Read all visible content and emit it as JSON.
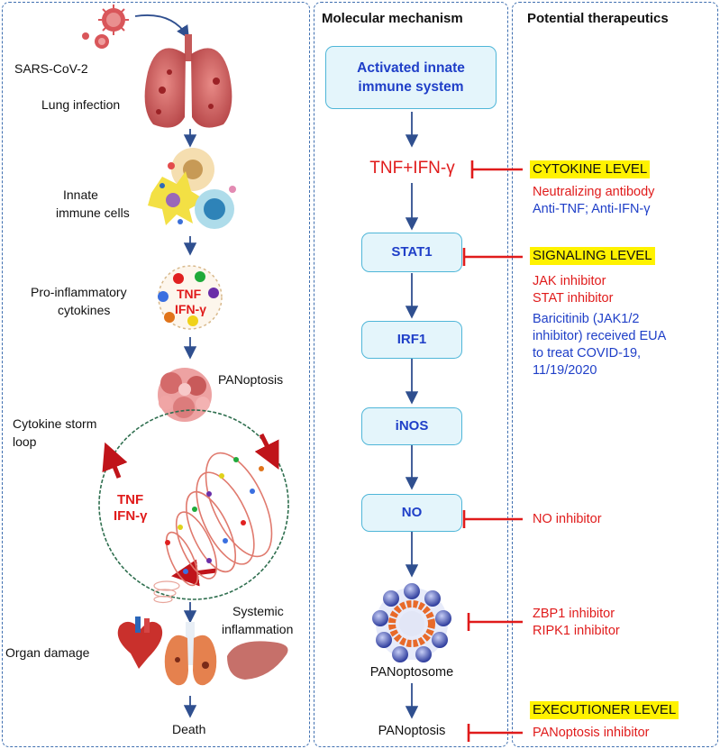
{
  "headers": {
    "mechanism": "Molecular mechanism",
    "therapeutics": "Potential therapeutics"
  },
  "left": {
    "virus": "SARS-CoV-2",
    "lung_infection": "Lung infection",
    "innate_cells_1": "Innate",
    "innate_cells_2": "immune cells",
    "cytokines_1": "Pro-inflammatory",
    "cytokines_2": "cytokines",
    "tnf": "TNF",
    "ifn": "IFN-γ",
    "panoptosis": "PANoptosis",
    "storm_1": "Cytokine storm",
    "storm_2": "loop",
    "loop_tnf": "TNF",
    "loop_ifn": "IFN-γ",
    "systemic_1": "Systemic",
    "systemic_2": "inflammation",
    "organ_damage": "Organ damage",
    "death": "Death"
  },
  "middle": {
    "activated_1": "Activated innate",
    "activated_2": "immune system",
    "tnf_ifn": "TNF+IFN-γ",
    "stat1": "STAT1",
    "irf1": "IRF1",
    "inos": "iNOS",
    "no": "NO",
    "panoptosome": "PANoptosome",
    "panoptosis": "PANoptosis"
  },
  "right": {
    "cytokine_level": "CYTOKINE LEVEL",
    "neutralizing": "Neutralizing antibody",
    "anti_tnf": "Anti-TNF; Anti-IFN-γ",
    "signaling_level": "SIGNALING LEVEL",
    "jak": "JAK inhibitor",
    "stat": "STAT inhibitor",
    "bari_1": "Baricitinib (JAK1/2",
    "bari_2": "inhibitor) received EUA",
    "bari_3": "to treat COVID-19,",
    "bari_4": "11/19/2020",
    "no_inhibitor": "NO inhibitor",
    "zbp1": "ZBP1 inhibitor",
    "ripk1": "RIPK1 inhibitor",
    "executioner_level": "EXECUTIONER LEVEL",
    "panoptosis_inhibitor": "PANoptosis inhibitor"
  },
  "colors": {
    "panel_border": "#3f6fb0",
    "arrow": "#2f4f8f",
    "inhibit": "#e01b1b",
    "box_border": "#4fb6d8",
    "box_fill": "#e4f5fb",
    "highlight": "#fff200"
  }
}
